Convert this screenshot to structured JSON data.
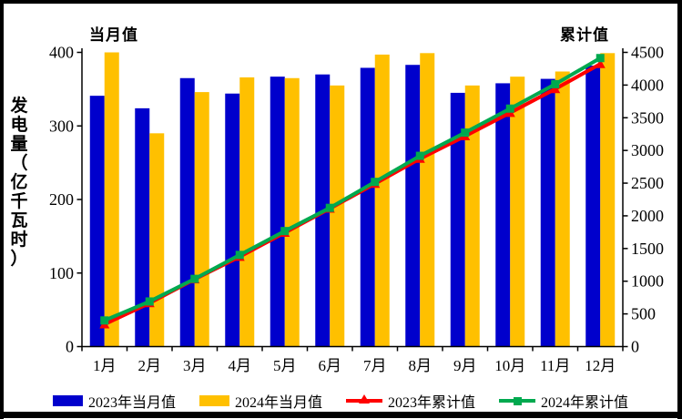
{
  "chart_data": {
    "type": "bar",
    "subtype": "combo-bar-line-dual-axis",
    "categories": [
      "1月",
      "2月",
      "3月",
      "4月",
      "5月",
      "6月",
      "7月",
      "8月",
      "9月",
      "10月",
      "11月",
      "12月"
    ],
    "left_axis": {
      "title": "当月值",
      "min": 0,
      "max": 400,
      "ticks": [
        0,
        100,
        200,
        300,
        400
      ]
    },
    "right_axis": {
      "title": "累计值",
      "min": 0,
      "max": 4500,
      "ticks": [
        0,
        500,
        1000,
        1500,
        2000,
        2500,
        3000,
        3500,
        4000,
        4500
      ]
    },
    "ylabel": "发电量（亿千瓦时）",
    "grid": false,
    "legend_position": "bottom",
    "bar_series": [
      {
        "name": "2023年当月值",
        "color": "#0000CC",
        "axis": "left",
        "values": [
          341,
          324,
          365,
          344,
          367,
          370,
          379,
          383,
          345,
          358,
          364,
          382
        ]
      },
      {
        "name": "2024年当月值",
        "color": "#FFC000",
        "axis": "left",
        "values": [
          400,
          290,
          346,
          366,
          365,
          355,
          397,
          399,
          355,
          367,
          374,
          399
        ]
      }
    ],
    "line_series": [
      {
        "name": "2023年累计值",
        "color": "#FF0000",
        "marker": "triangle",
        "axis": "right",
        "values": [
          341,
          665,
          1030,
          1374,
          1741,
          2111,
          2490,
          2873,
          3218,
          3576,
          3940,
          4322
        ]
      },
      {
        "name": "2024年累计值",
        "color": "#00A94F",
        "marker": "square",
        "axis": "right",
        "values": [
          400,
          690,
          1036,
          1402,
          1767,
          2122,
          2519,
          2918,
          3273,
          3640,
          4014,
          4413
        ]
      }
    ],
    "legend": [
      {
        "label": "2023年当月值",
        "type": "bar",
        "color": "#0000CC"
      },
      {
        "label": "2024年当月值",
        "type": "bar",
        "color": "#FFC000"
      },
      {
        "label": "2023年累计值",
        "type": "line-triangle",
        "color": "#FF0000"
      },
      {
        "label": "2024年累计值",
        "type": "line-square",
        "color": "#00A94F"
      }
    ],
    "colors": {
      "axis": "#000000",
      "frame_border": "#000000",
      "background": "#FFFFFF"
    }
  }
}
